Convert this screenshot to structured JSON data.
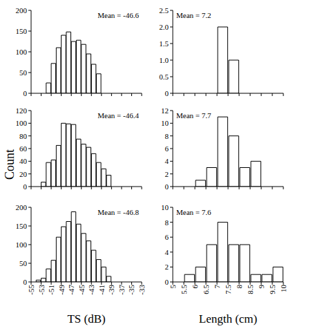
{
  "chart_data": [
    {
      "type": "histogram",
      "bins": [
        -52,
        -51,
        -50,
        -49,
        -48,
        -47,
        -46,
        -45,
        -44,
        -43,
        -42,
        -41
      ],
      "values": [
        25,
        72,
        110,
        140,
        148,
        125,
        128,
        118,
        95,
        70,
        47
      ],
      "xlim": [
        -55,
        -33
      ],
      "xticks": [
        -55,
        -53,
        -51,
        -49,
        -47,
        -45,
        -43,
        -41,
        -39,
        -37,
        -35,
        -33
      ],
      "ylim": [
        0,
        200
      ],
      "yticks": [
        0,
        50,
        100,
        150,
        200
      ],
      "annotations": [
        "Mean = -46.6"
      ],
      "color": "#ffffff",
      "tick_labels": "y"
    },
    {
      "type": "histogram",
      "bins": [
        7,
        7.5,
        8
      ],
      "values": [
        2,
        1
      ],
      "xlim": [
        5,
        10
      ],
      "xticks": [
        5,
        5.5,
        6,
        6.5,
        7,
        7.5,
        8,
        8.5,
        9,
        9.5,
        10
      ],
      "ylim": [
        0,
        2.5
      ],
      "yticks": [
        0,
        0.5,
        {
          "value": 1,
          "label": "1.0"
        },
        1.5,
        {
          "value": 2,
          "label": "2.0"
        },
        2.5
      ],
      "annotations": [
        "Mean = 7.2"
      ],
      "color": "#ffffff",
      "tick_labels": "y"
    },
    {
      "type": "histogram",
      "bins": [
        -53,
        -52,
        -51,
        -50,
        -49,
        -48,
        -47,
        -46,
        -45,
        -44,
        -43,
        -42,
        -41,
        -40,
        -39
      ],
      "values": [
        7,
        38,
        42,
        65,
        100,
        99,
        98,
        75,
        67,
        62,
        52,
        38,
        28,
        18
      ],
      "xlim": [
        -55,
        -33
      ],
      "xticks": [
        -55,
        -53,
        -51,
        -49,
        -47,
        -45,
        -43,
        -41,
        -39,
        -37,
        -35,
        -33
      ],
      "ylim": [
        0,
        120
      ],
      "yticks": [
        0,
        20,
        40,
        60,
        80,
        100,
        120
      ],
      "annotations": [
        "Mean = -46.4"
      ],
      "y_label": "Count",
      "color": "#ffffff",
      "tick_labels": "y"
    },
    {
      "type": "histogram",
      "bins": [
        6,
        6.5,
        7,
        7.5,
        8,
        8.5,
        9
      ],
      "values": [
        1,
        3,
        11,
        8,
        3,
        4
      ],
      "xlim": [
        5,
        10
      ],
      "xticks": [
        5,
        5.5,
        6,
        6.5,
        7,
        7.5,
        8,
        8.5,
        9,
        9.5,
        10
      ],
      "ylim": [
        0,
        12
      ],
      "yticks": [
        0,
        2,
        4,
        6,
        8,
        10,
        12
      ],
      "annotations": [
        "Mean = 7.7"
      ],
      "color": "#ffffff",
      "tick_labels": "y"
    },
    {
      "type": "histogram",
      "bins": [
        -54,
        -53,
        -52,
        -51,
        -50,
        -49,
        -48,
        -47,
        -46,
        -45,
        -44,
        -43,
        -42,
        -41,
        -40,
        -39
      ],
      "values": [
        5,
        10,
        35,
        58,
        120,
        148,
        162,
        188,
        155,
        130,
        110,
        85,
        60,
        40,
        15
      ],
      "xlim": [
        -55,
        -33
      ],
      "xticks": [
        -55,
        -53,
        -51,
        -49,
        -47,
        -45,
        -43,
        -41,
        -39,
        -37,
        -35,
        -33
      ],
      "ylim": [
        0,
        200
      ],
      "yticks": [
        0,
        50,
        100,
        150,
        200
      ],
      "annotations": [
        "Mean = -46.8"
      ],
      "x_label": "TS (dB)",
      "color": "#ffffff"
    },
    {
      "type": "histogram",
      "bins": [
        5.5,
        6,
        6.5,
        7,
        7.5,
        8,
        8.5,
        9,
        9.5,
        10
      ],
      "values": [
        1,
        2,
        5,
        8,
        5,
        5,
        1,
        1,
        2
      ],
      "xlim": [
        5,
        10
      ],
      "xticks": [
        5,
        5.5,
        6,
        6.5,
        7,
        7.5,
        8,
        8.5,
        9,
        9.5,
        10
      ],
      "ylim": [
        0,
        10
      ],
      "yticks": [
        0,
        2,
        4,
        6,
        8,
        10
      ],
      "annotations": [
        "Mean = 7.6"
      ],
      "x_label": "Length (cm)",
      "color": "#ffffff"
    }
  ]
}
